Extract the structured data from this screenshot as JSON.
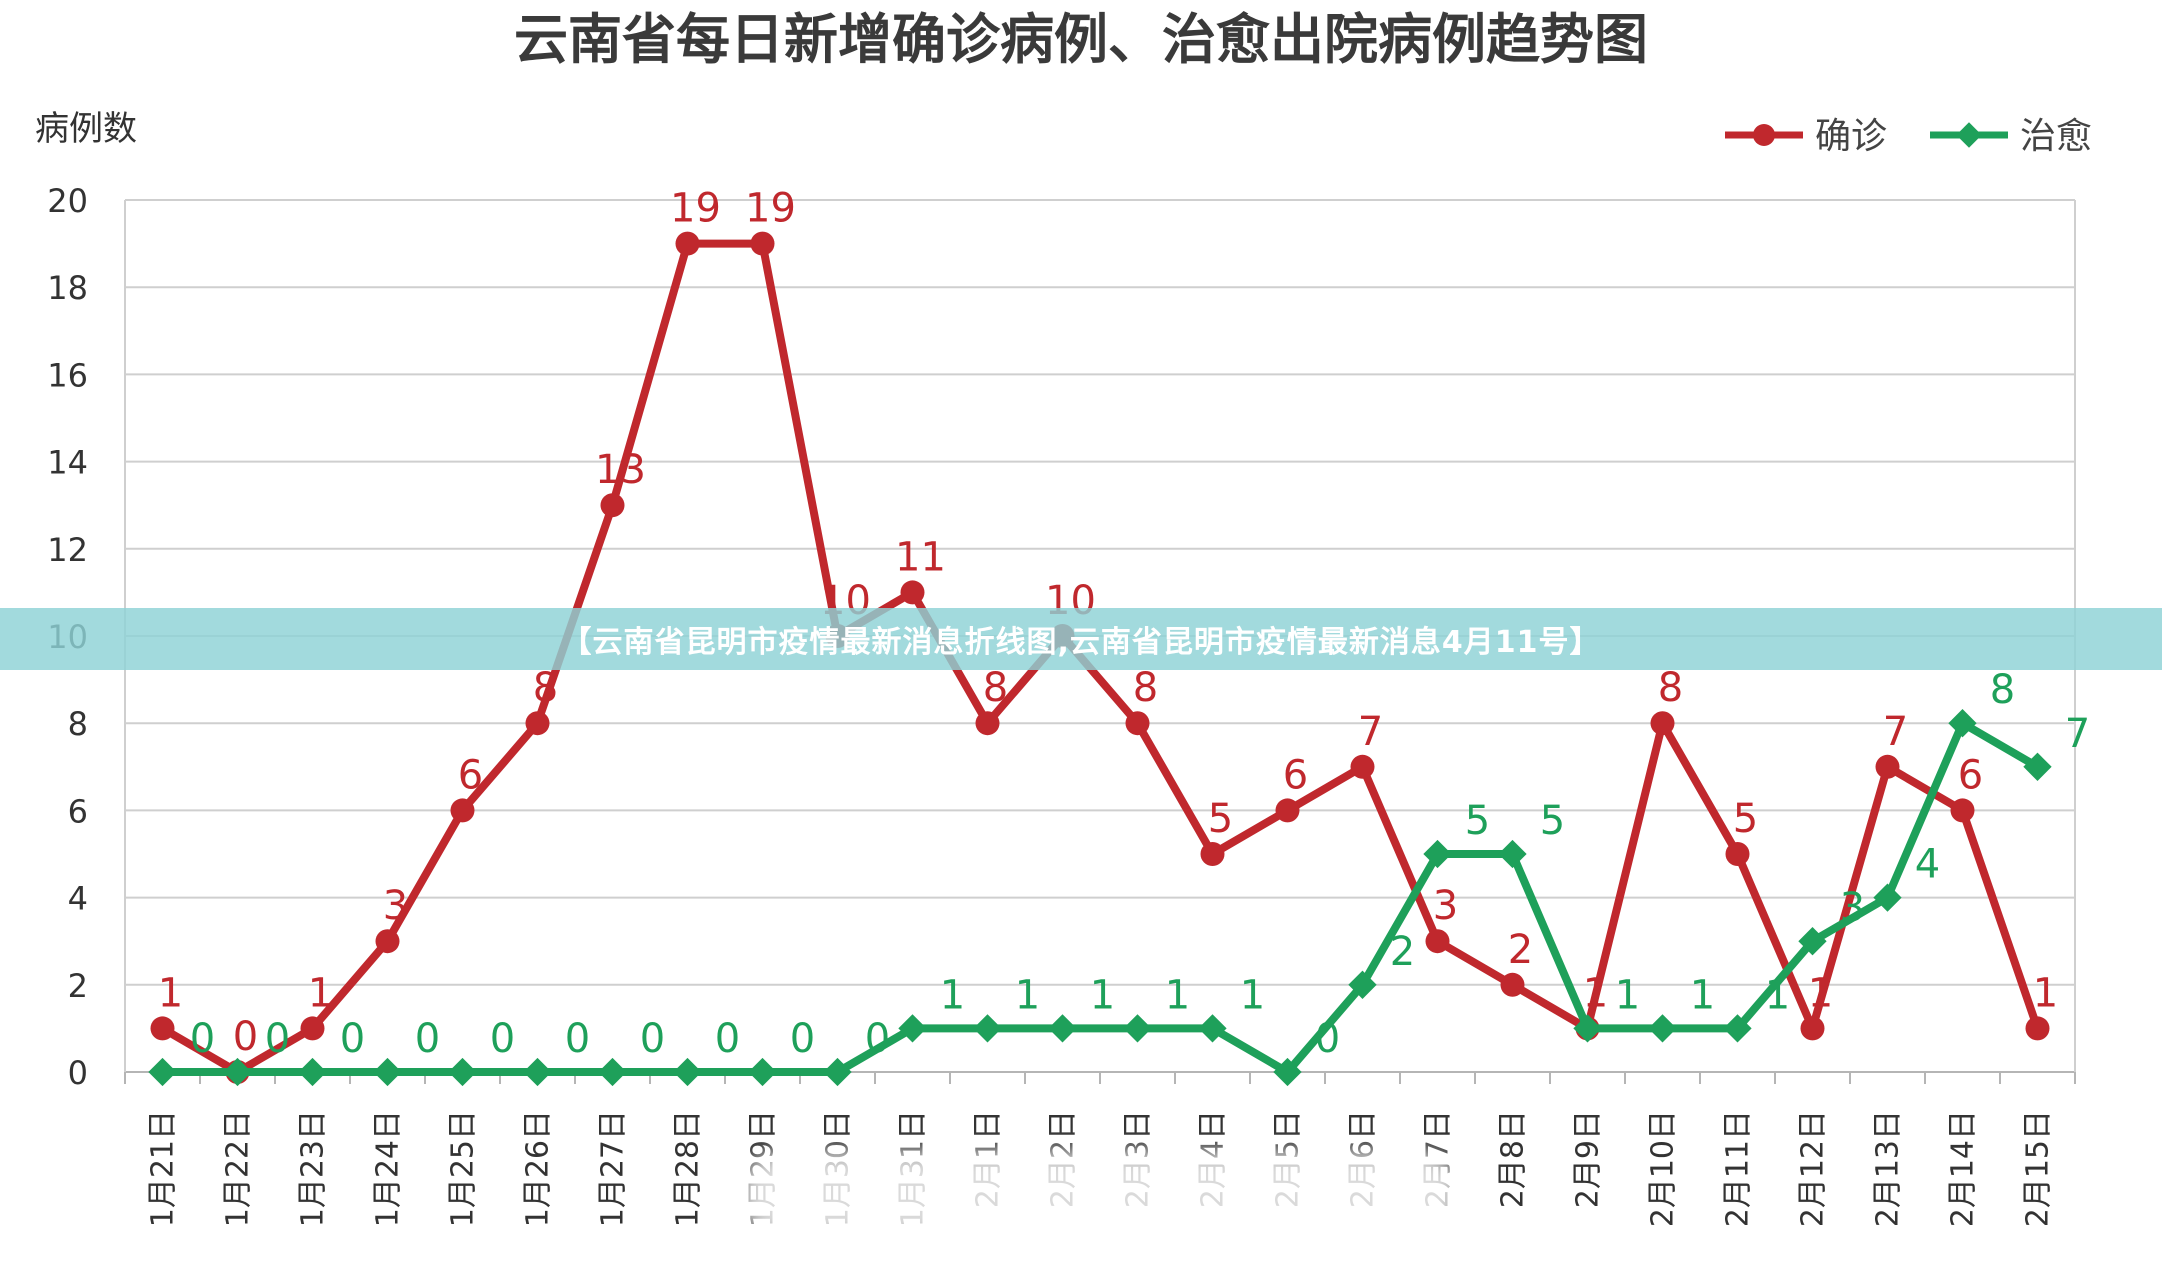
{
  "colors": {
    "confirmed": "#c0282d",
    "recovered": "#1ea05a",
    "grid": "#cfcfcf",
    "axis_text": "#333333"
  },
  "banner": {
    "text": "【云南省昆明市疫情最新消息折线图,云南省昆明市疫情最新消息4月11号】"
  },
  "chart_data": {
    "type": "line",
    "title": "云南省每日新增确诊病例、治愈出院病例趋势图",
    "ylabel": "病例数",
    "xlabel": "",
    "ylim": [
      0,
      20
    ],
    "yticks": [
      "0",
      "2",
      "4",
      "6",
      "8",
      "10",
      "12",
      "14",
      "16",
      "18",
      "20"
    ],
    "grid": true,
    "legend": "top-right",
    "categories": [
      "1月21日",
      "1月22日",
      "1月23日",
      "1月24日",
      "1月25日",
      "1月26日",
      "1月27日",
      "1月28日",
      "1月29日",
      "1月30日",
      "1月31日",
      "2月1日",
      "2月2日",
      "2月3日",
      "2月4日",
      "2月5日",
      "2月6日",
      "2月7日",
      "2月8日",
      "2月9日",
      "2月10日",
      "2月11日",
      "2月12日",
      "2月13日",
      "2月14日",
      "2月15日"
    ],
    "series": [
      {
        "name": "确诊",
        "color": "#c0282d",
        "values": [
          1,
          0,
          1,
          3,
          6,
          8,
          13,
          19,
          19,
          10,
          11,
          8,
          10,
          8,
          5,
          6,
          7,
          3,
          2,
          1,
          8,
          5,
          1,
          7,
          6,
          1
        ]
      },
      {
        "name": "治愈",
        "color": "#1ea05a",
        "values": [
          0,
          0,
          0,
          0,
          0,
          0,
          0,
          0,
          0,
          0,
          1,
          1,
          1,
          1,
          1,
          0,
          2,
          5,
          5,
          1,
          1,
          1,
          3,
          4,
          8,
          7
        ]
      }
    ]
  }
}
